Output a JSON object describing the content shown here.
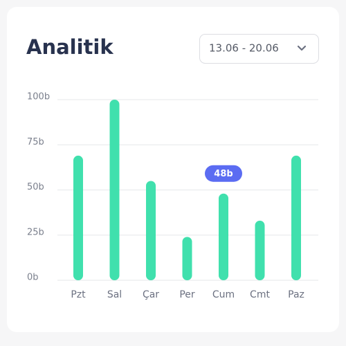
{
  "chart_data": {
    "type": "bar",
    "title": "Analitik",
    "date_range": "13.06 - 20.06",
    "categories": [
      "Pzt",
      "Sal",
      "Çar",
      "Per",
      "Cum",
      "Cmt",
      "Paz"
    ],
    "values": [
      69,
      100,
      55,
      24,
      48,
      33,
      69
    ],
    "value_labels": [
      null,
      null,
      null,
      null,
      "48b",
      null,
      null
    ],
    "color": "#40e0ad",
    "ylim": [
      0,
      100
    ],
    "yticks": [
      {
        "value": 0,
        "label": "0b"
      },
      {
        "value": 25,
        "label": "25b"
      },
      {
        "value": 50,
        "label": "50b"
      },
      {
        "value": 75,
        "label": "75b"
      },
      {
        "value": 100,
        "label": "100b"
      }
    ],
    "grid": true
  }
}
